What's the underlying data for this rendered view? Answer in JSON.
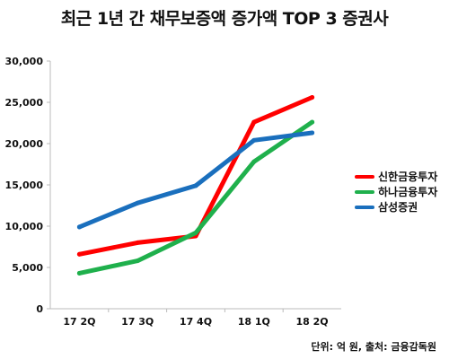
{
  "chart_data": {
    "type": "line",
    "title": "최근 1년 간 채무보증액 증가액 TOP 3 증권사",
    "categories": [
      "17 2Q",
      "17 3Q",
      "17 4Q",
      "18 1Q",
      "18 2Q"
    ],
    "ylim": [
      0,
      30000
    ],
    "yticks": [
      "0",
      "5,000",
      "10,000",
      "15,000",
      "20,000",
      "25,000",
      "30,000"
    ],
    "grid": false,
    "legend_position": "right",
    "series": [
      {
        "name": "신한금융투자",
        "color": "#ff0000",
        "values": [
          6600,
          8000,
          8800,
          22600,
          25600
        ]
      },
      {
        "name": "하나금융투자",
        "color": "#1fb04c",
        "values": [
          4300,
          5800,
          9200,
          17800,
          22600
        ]
      },
      {
        "name": "삼성증권",
        "color": "#1a6fbd",
        "values": [
          9900,
          12800,
          14900,
          20400,
          21300
        ]
      }
    ],
    "source_note": "단위: 억 원, 출처: 금융감독원"
  }
}
